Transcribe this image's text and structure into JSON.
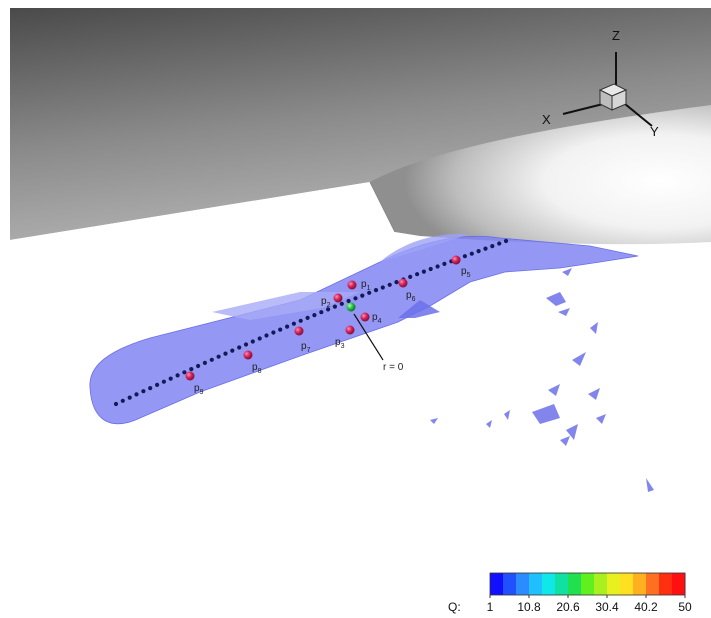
{
  "axes_triad": {
    "x": "X",
    "y": "Y",
    "z": "Z"
  },
  "points": [
    {
      "base": "p",
      "sub": "1"
    },
    {
      "base": "p",
      "sub": "2"
    },
    {
      "base": "p",
      "sub": "3"
    },
    {
      "base": "p",
      "sub": "4"
    },
    {
      "base": "p",
      "sub": "5"
    },
    {
      "base": "p",
      "sub": "6"
    },
    {
      "base": "p",
      "sub": "7"
    },
    {
      "base": "p",
      "sub": "8"
    },
    {
      "base": "p",
      "sub": "9"
    }
  ],
  "annotation": {
    "text": "r = 0"
  },
  "colorbar": {
    "label": "Q:",
    "ticks": [
      "1",
      "10.8",
      "20.6",
      "30.4",
      "40.2",
      "50"
    ],
    "colors": [
      "#1010ff",
      "#2050ff",
      "#2a8cff",
      "#20c0ff",
      "#10e8e8",
      "#10e0a0",
      "#20e050",
      "#60f020",
      "#a8f020",
      "#e8f020",
      "#ffe020",
      "#ffb020",
      "#ff7020",
      "#ff3010",
      "#ff1010"
    ]
  },
  "colors": {
    "vortex_surface": "#7c80f2",
    "centerline_dots": "#141a55",
    "probe_points": "#d0205a",
    "origin_point": "#22c040"
  }
}
